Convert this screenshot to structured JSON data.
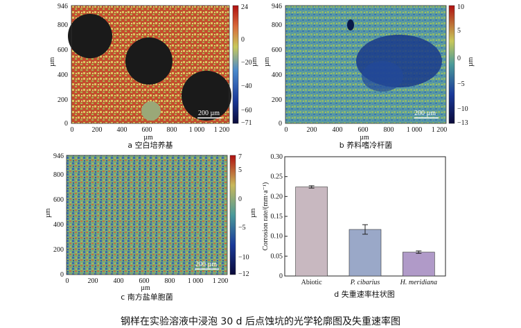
{
  "panels": {
    "a": {
      "caption": "a  空白培养基",
      "scale_bar": "200 µm",
      "x_ticks": [
        "0",
        "200",
        "400",
        "600",
        "800",
        "1 000",
        "1 200"
      ],
      "y_ticks": [
        "946",
        "800",
        "600",
        "400",
        "200",
        "0"
      ],
      "x_label": "µm",
      "y_label": "µm",
      "cbar_ticks": [
        "24",
        "0",
        "−20",
        "−40",
        "−60",
        "−71"
      ],
      "cbar_label": "µm"
    },
    "b": {
      "caption": "b  养料嗜冷杆菌",
      "scale_bar": "200 µm",
      "x_ticks": [
        "0",
        "200",
        "400",
        "600",
        "800",
        "1 000",
        "1 200"
      ],
      "y_ticks": [
        "946",
        "800",
        "600",
        "400",
        "200",
        "0"
      ],
      "x_label": "µm",
      "y_label": "µm",
      "cbar_ticks": [
        "10",
        "5",
        "0",
        "−5",
        "−10",
        "−13"
      ],
      "cbar_label": "µm"
    },
    "c": {
      "caption": "c  南方盐单胞菌",
      "scale_bar": "200 µm",
      "x_ticks": [
        "0",
        "200",
        "400",
        "600",
        "800",
        "1 000",
        "1 200"
      ],
      "y_ticks": [
        "946",
        "800",
        "600",
        "400",
        "200",
        "0"
      ],
      "x_label": "µm",
      "y_label": "µm",
      "cbar_ticks": [
        "7",
        "5",
        "0",
        "−5",
        "−10",
        "−12"
      ],
      "cbar_label": "µm"
    }
  },
  "bar_panel_caption": "d  失重速率柱状图",
  "figure_caption": "钢样在实验溶液中浸泡 30  d 后点蚀坑的光学轮廓图及失重速率图",
  "chart_data": {
    "type": "bar",
    "categories": [
      "Abiotic",
      "P. cibarius",
      "H. meridiana"
    ],
    "values": [
      0.224,
      0.117,
      0.06
    ],
    "errors": [
      0.003,
      0.012,
      0.003
    ],
    "ylabel": "Corrosion rate/(mm·a⁻¹)",
    "ylim": [
      0,
      0.3
    ],
    "yticks": [
      "0",
      "0.05",
      "0.10",
      "0.15",
      "0.20",
      "0.25",
      "0.30"
    ],
    "grid": false,
    "bar_colors": [
      "#c8b8c0",
      "#9aa8c8",
      "#b09ac8"
    ]
  }
}
